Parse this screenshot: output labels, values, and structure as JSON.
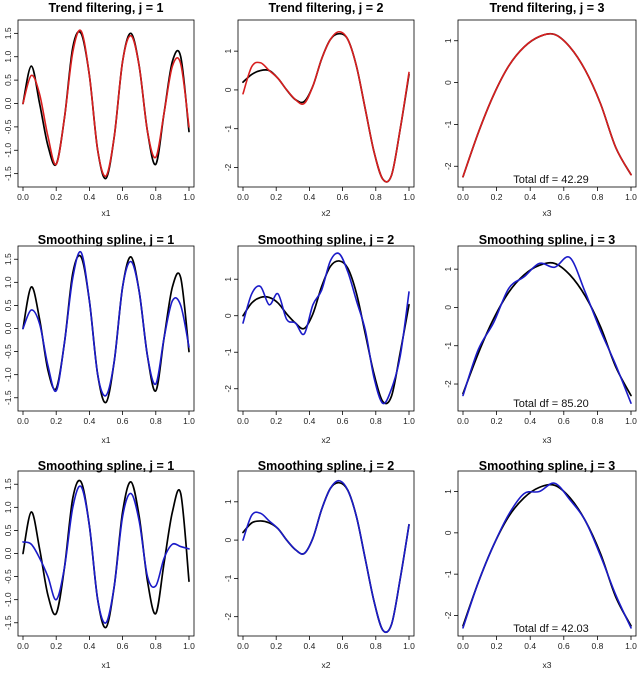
{
  "colors": {
    "truth": "#000000",
    "trend_filtering": "#d81e1e",
    "smoothing_spline": "#1b1bc8",
    "axis": "#000000"
  },
  "chart_data": [
    {
      "type": "line",
      "title": "Trend filtering, j = 1",
      "xlabel": "x1",
      "ylabel": "",
      "xlim": [
        0,
        1
      ],
      "ylim": [
        -1.7,
        1.7
      ],
      "xticks": [
        "0.0",
        "0.2",
        "0.4",
        "0.6",
        "0.8",
        "1.0"
      ],
      "yticks": [
        "-1.5",
        "-1.0",
        "-0.5",
        "0.0",
        "0.5",
        "1.0",
        "1.5"
      ],
      "note": "",
      "fit_color": "#d81e1e",
      "series": [
        {
          "role": "truth",
          "values": [
            0.0,
            0.8,
            0.0,
            -0.9,
            -1.3,
            -0.3,
            1.2,
            1.5,
            0.6,
            -1.0,
            -1.6,
            -0.7,
            0.9,
            1.5,
            0.8,
            -0.6,
            -1.3,
            -0.2,
            0.9,
            1.0,
            -0.6
          ]
        },
        {
          "role": "fit",
          "values": [
            0.0,
            0.6,
            0.2,
            -0.7,
            -1.3,
            -0.3,
            1.1,
            1.55,
            0.6,
            -1.0,
            -1.55,
            -0.7,
            0.9,
            1.45,
            0.8,
            -0.6,
            -1.15,
            -0.2,
            0.8,
            0.85,
            -0.5
          ]
        }
      ]
    },
    {
      "type": "line",
      "title": "Trend filtering, j = 2",
      "xlabel": "x2",
      "ylabel": "",
      "xlim": [
        0,
        1
      ],
      "ylim": [
        -2.4,
        1.7
      ],
      "xticks": [
        "0.0",
        "0.2",
        "0.4",
        "0.6",
        "0.8",
        "1.0"
      ],
      "yticks": [
        "-2",
        "-1",
        "0",
        "1"
      ],
      "note": "",
      "fit_color": "#d81e1e",
      "series": [
        {
          "role": "truth",
          "values": [
            0.2,
            0.4,
            0.5,
            0.5,
            0.3,
            0.0,
            -0.25,
            -0.3,
            0.1,
            0.8,
            1.3,
            1.45,
            1.3,
            0.6,
            -0.5,
            -1.6,
            -2.3,
            -2.2,
            -1.0,
            0.4
          ]
        },
        {
          "role": "fit",
          "values": [
            -0.1,
            0.6,
            0.7,
            0.5,
            0.3,
            0.0,
            -0.25,
            -0.35,
            0.1,
            0.8,
            1.3,
            1.5,
            1.3,
            0.6,
            -0.5,
            -1.6,
            -2.3,
            -2.2,
            -1.0,
            0.45
          ]
        }
      ]
    },
    {
      "type": "line",
      "title": "Trend filtering, j = 3",
      "xlabel": "x3",
      "ylabel": "",
      "xlim": [
        0,
        1
      ],
      "ylim": [
        -2.4,
        1.4
      ],
      "xticks": [
        "0.0",
        "0.2",
        "0.4",
        "0.6",
        "0.8",
        "1.0"
      ],
      "yticks": [
        "-2",
        "-1",
        "0",
        "1"
      ],
      "note": "Total df = 42.29",
      "fit_color": "#d81e1e",
      "series": [
        {
          "role": "truth",
          "values": [
            -2.25,
            -1.2,
            -0.3,
            0.4,
            0.85,
            1.1,
            1.15,
            0.85,
            0.3,
            -0.5,
            -1.55,
            -2.2
          ]
        },
        {
          "role": "fit",
          "values": [
            -2.25,
            -1.2,
            -0.3,
            0.4,
            0.85,
            1.1,
            1.15,
            0.85,
            0.3,
            -0.5,
            -1.55,
            -2.2
          ]
        }
      ]
    },
    {
      "type": "line",
      "title": "Smoothing spline, j = 1",
      "xlabel": "x1",
      "ylabel": "",
      "xlim": [
        0,
        1
      ],
      "ylim": [
        -1.7,
        1.7
      ],
      "xticks": [
        "0.0",
        "0.2",
        "0.4",
        "0.6",
        "0.8",
        "1.0"
      ],
      "yticks": [
        "-1.5",
        "-1.0",
        "-0.5",
        "0.0",
        "0.5",
        "1.0",
        "1.5"
      ],
      "note": "",
      "fit_color": "#1b1bc8",
      "series": [
        {
          "role": "truth",
          "values": [
            0.0,
            0.9,
            0.2,
            -0.9,
            -1.3,
            -0.3,
            1.2,
            1.55,
            0.6,
            -1.0,
            -1.6,
            -0.7,
            0.9,
            1.55,
            0.8,
            -0.6,
            -1.35,
            -0.2,
            0.9,
            1.1,
            -0.5
          ]
        },
        {
          "role": "fit",
          "values": [
            0.0,
            0.4,
            0.1,
            -0.8,
            -1.35,
            -0.3,
            1.1,
            1.65,
            0.6,
            -1.0,
            -1.45,
            -0.7,
            0.9,
            1.45,
            0.8,
            -0.6,
            -1.2,
            -0.2,
            0.6,
            0.5,
            -0.4
          ]
        }
      ]
    },
    {
      "type": "line",
      "title": "Smoothing spline, j = 2",
      "xlabel": "x2",
      "ylabel": "",
      "xlim": [
        0,
        1
      ],
      "ylim": [
        -2.5,
        1.8
      ],
      "xticks": [
        "0.0",
        "0.2",
        "0.4",
        "0.6",
        "0.8",
        "1.0"
      ],
      "yticks": [
        "-2",
        "-1",
        "0",
        "1"
      ],
      "note": "",
      "fit_color": "#1b1bc8",
      "series": [
        {
          "role": "truth",
          "values": [
            0.0,
            0.35,
            0.5,
            0.5,
            0.35,
            0.05,
            -0.2,
            -0.35,
            0.05,
            0.8,
            1.35,
            1.5,
            1.3,
            0.6,
            -0.5,
            -1.6,
            -2.35,
            -2.2,
            -1.0,
            0.3
          ]
        },
        {
          "role": "fit",
          "values": [
            -0.2,
            0.6,
            0.8,
            0.3,
            0.6,
            -0.1,
            -0.2,
            -0.5,
            0.3,
            0.7,
            1.5,
            1.7,
            1.2,
            0.4,
            -0.4,
            -1.7,
            -2.4,
            -2.0,
            -1.1,
            0.65
          ]
        }
      ]
    },
    {
      "type": "line",
      "title": "Smoothing spline, j = 3",
      "xlabel": "x3",
      "ylabel": "",
      "xlim": [
        0,
        1
      ],
      "ylim": [
        -2.6,
        1.5
      ],
      "xticks": [
        "0.0",
        "0.2",
        "0.4",
        "0.6",
        "0.8",
        "1.0"
      ],
      "yticks": [
        "-2",
        "-1",
        "0",
        "1"
      ],
      "note": "Total df = 85.20",
      "fit_color": "#1b1bc8",
      "series": [
        {
          "role": "truth",
          "values": [
            -2.25,
            -1.2,
            -0.3,
            0.4,
            0.85,
            1.1,
            1.15,
            0.85,
            0.3,
            -0.5,
            -1.55,
            -2.3
          ]
        },
        {
          "role": "fit",
          "values": [
            -2.3,
            -1.1,
            -0.4,
            0.5,
            0.8,
            1.15,
            1.05,
            1.3,
            0.4,
            -0.6,
            -1.5,
            -2.5
          ]
        }
      ]
    },
    {
      "type": "line",
      "title": "Smoothing spline, j = 1",
      "xlabel": "x1",
      "ylabel": "",
      "xlim": [
        0,
        1
      ],
      "ylim": [
        -1.7,
        1.7
      ],
      "xticks": [
        "0.0",
        "0.2",
        "0.4",
        "0.6",
        "0.8",
        "1.0"
      ],
      "yticks": [
        "-1.5",
        "-1.0",
        "-0.5",
        "0.0",
        "0.5",
        "1.0",
        "1.5"
      ],
      "note": "",
      "fit_color": "#1b1bc8",
      "series": [
        {
          "role": "truth",
          "values": [
            0.0,
            0.9,
            0.1,
            -0.9,
            -1.3,
            -0.3,
            1.2,
            1.55,
            0.6,
            -1.0,
            -1.6,
            -0.7,
            0.9,
            1.55,
            0.8,
            -0.6,
            -1.3,
            -0.2,
            0.9,
            1.3,
            -0.6
          ]
        },
        {
          "role": "fit",
          "values": [
            0.25,
            0.2,
            -0.1,
            -0.5,
            -1.0,
            -0.3,
            1.0,
            1.45,
            0.6,
            -1.0,
            -1.5,
            -0.7,
            0.8,
            1.3,
            0.7,
            -0.5,
            -0.7,
            -0.1,
            0.2,
            0.15,
            0.1
          ]
        }
      ]
    },
    {
      "type": "line",
      "title": "Smoothing spline, j = 2",
      "xlabel": "x2",
      "ylabel": "",
      "xlim": [
        0,
        1
      ],
      "ylim": [
        -2.4,
        1.7
      ],
      "xticks": [
        "0.0",
        "0.2",
        "0.4",
        "0.6",
        "0.8",
        "1.0"
      ],
      "yticks": [
        "-2",
        "-1",
        "0",
        "1"
      ],
      "note": "",
      "fit_color": "#1b1bc8",
      "series": [
        {
          "role": "truth",
          "values": [
            0.2,
            0.45,
            0.5,
            0.45,
            0.3,
            0.0,
            -0.25,
            -0.35,
            0.05,
            0.8,
            1.35,
            1.5,
            1.3,
            0.6,
            -0.5,
            -1.6,
            -2.35,
            -2.2,
            -1.0,
            0.4
          ]
        },
        {
          "role": "fit",
          "values": [
            0.0,
            0.65,
            0.7,
            0.5,
            0.3,
            0.0,
            -0.25,
            -0.35,
            0.05,
            0.8,
            1.35,
            1.55,
            1.3,
            0.6,
            -0.5,
            -1.6,
            -2.35,
            -2.2,
            -1.0,
            0.4
          ]
        }
      ]
    },
    {
      "type": "line",
      "title": "Smoothing spline, j = 3",
      "xlabel": "x3",
      "ylabel": "",
      "xlim": [
        0,
        1
      ],
      "ylim": [
        -2.4,
        1.4
      ],
      "xticks": [
        "0.0",
        "0.2",
        "0.4",
        "0.6",
        "0.8",
        "1.0"
      ],
      "yticks": [
        "-2",
        "-1",
        "0",
        "1"
      ],
      "note": "Total df = 42.03",
      "fit_color": "#1b1bc8",
      "series": [
        {
          "role": "truth",
          "values": [
            -2.25,
            -1.2,
            -0.3,
            0.4,
            0.85,
            1.1,
            1.15,
            0.85,
            0.3,
            -0.5,
            -1.55,
            -2.25
          ]
        },
        {
          "role": "fit",
          "values": [
            -2.3,
            -1.2,
            -0.3,
            0.45,
            0.95,
            1.0,
            1.2,
            0.8,
            0.3,
            -0.55,
            -1.5,
            -2.3
          ]
        }
      ]
    }
  ]
}
